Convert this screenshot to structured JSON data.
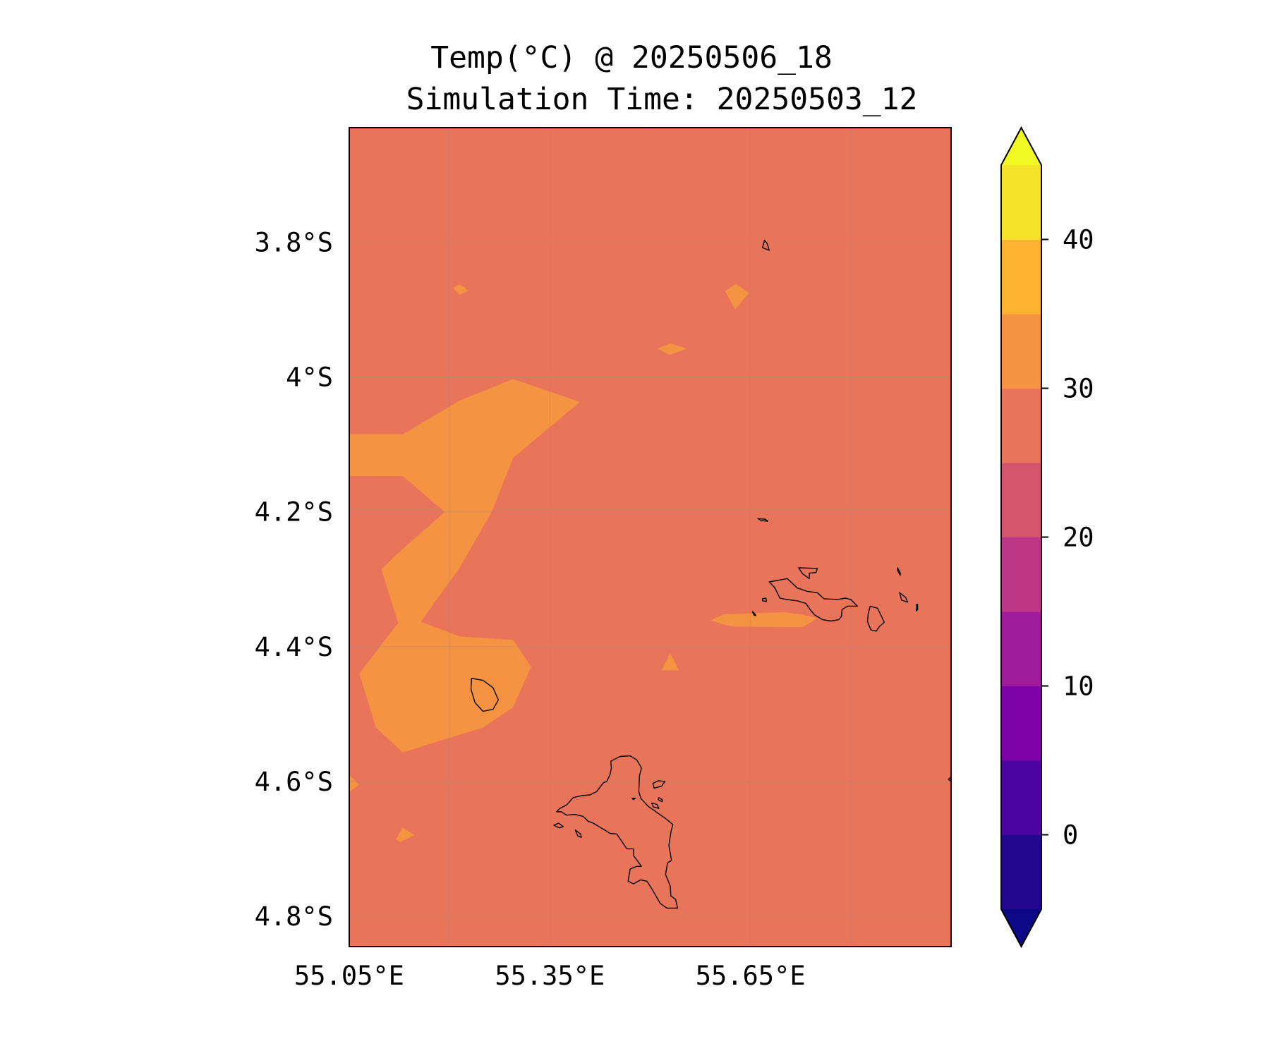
{
  "title": {
    "line1": "Temp(°C) @ 20250506_18",
    "line2": "Simulation Time: 20250503_12"
  },
  "chart_data": {
    "type": "heatmap",
    "variable": "Temp(°C)",
    "projection": "lat-lon",
    "xlim": [
      55.05,
      55.95
    ],
    "ylim": [
      -4.845,
      -3.63
    ],
    "grid": true,
    "x_ticks": [
      {
        "value": 55.05,
        "label": "55.05°E"
      },
      {
        "value": 55.35,
        "label": "55.35°E"
      },
      {
        "value": 55.65,
        "label": "55.65°E"
      }
    ],
    "y_ticks": [
      {
        "value": -3.8,
        "label": "3.8°S"
      },
      {
        "value": -4.0,
        "label": "4°S"
      },
      {
        "value": -4.2,
        "label": "4.2°S"
      },
      {
        "value": -4.4,
        "label": "4.4°S"
      },
      {
        "value": -4.6,
        "label": "4.6°S"
      },
      {
        "value": -4.8,
        "label": "4.8°S"
      }
    ],
    "background_level": {
      "range": [
        25,
        30
      ],
      "color": "#e8745a"
    },
    "highlight_level": {
      "range": [
        30,
        35
      ],
      "color": "#f59342"
    },
    "warm_regions": [
      {
        "name": "western-plume",
        "points": [
          [
            55.05,
            -4.085
          ],
          [
            55.13,
            -4.085
          ],
          [
            55.215,
            -4.035
          ],
          [
            55.295,
            -4.003
          ],
          [
            55.395,
            -4.037
          ],
          [
            55.295,
            -4.12
          ],
          [
            55.263,
            -4.2
          ],
          [
            55.215,
            -4.283
          ],
          [
            55.157,
            -4.363
          ],
          [
            55.215,
            -4.385
          ],
          [
            55.295,
            -4.39
          ],
          [
            55.322,
            -4.43
          ],
          [
            55.295,
            -4.49
          ],
          [
            55.25,
            -4.52
          ],
          [
            55.13,
            -4.557
          ],
          [
            55.09,
            -4.52
          ],
          [
            55.065,
            -4.44
          ],
          [
            55.123,
            -4.365
          ],
          [
            55.098,
            -4.285
          ],
          [
            55.13,
            -4.255
          ],
          [
            55.193,
            -4.2
          ],
          [
            55.13,
            -4.147
          ],
          [
            55.05,
            -4.147
          ]
        ]
      },
      {
        "name": "north-speck",
        "points": [
          [
            55.205,
            -3.868
          ],
          [
            55.215,
            -3.862
          ],
          [
            55.228,
            -3.872
          ],
          [
            55.215,
            -3.878
          ]
        ]
      },
      {
        "name": "north-triangle",
        "points": [
          [
            55.612,
            -3.872
          ],
          [
            55.628,
            -3.862
          ],
          [
            55.648,
            -3.875
          ],
          [
            55.627,
            -3.9
          ]
        ]
      },
      {
        "name": "central-speck",
        "points": [
          [
            55.51,
            -3.958
          ],
          [
            55.53,
            -3.95
          ],
          [
            55.555,
            -3.958
          ],
          [
            55.53,
            -3.967
          ]
        ]
      },
      {
        "name": "east-band",
        "points": [
          [
            55.59,
            -4.361
          ],
          [
            55.61,
            -4.352
          ],
          [
            55.7,
            -4.349
          ],
          [
            55.725,
            -4.352
          ],
          [
            55.75,
            -4.358
          ],
          [
            55.728,
            -4.371
          ],
          [
            55.69,
            -4.371
          ],
          [
            55.62,
            -4.37
          ]
        ]
      },
      {
        "name": "central-triangle",
        "points": [
          [
            55.517,
            -4.435
          ],
          [
            55.53,
            -4.41
          ],
          [
            55.543,
            -4.435
          ]
        ]
      },
      {
        "name": "west-edge-speck",
        "points": [
          [
            55.05,
            -4.59
          ],
          [
            55.065,
            -4.605
          ],
          [
            55.05,
            -4.615
          ]
        ]
      },
      {
        "name": "southwest-speck",
        "points": [
          [
            55.12,
            -4.685
          ],
          [
            55.13,
            -4.668
          ],
          [
            55.148,
            -4.68
          ],
          [
            55.125,
            -4.69
          ]
        ]
      }
    ],
    "coastlines": [
      {
        "name": "mahe",
        "points": [
          [
            55.455,
            -4.563
          ],
          [
            55.47,
            -4.562
          ],
          [
            55.48,
            -4.568
          ],
          [
            55.487,
            -4.58
          ],
          [
            55.484,
            -4.592
          ],
          [
            55.483,
            -4.615
          ],
          [
            55.486,
            -4.625
          ],
          [
            55.497,
            -4.637
          ],
          [
            55.51,
            -4.646
          ],
          [
            55.523,
            -4.655
          ],
          [
            55.534,
            -4.664
          ],
          [
            55.531,
            -4.675
          ],
          [
            55.528,
            -4.695
          ],
          [
            55.532,
            -4.717
          ],
          [
            55.526,
            -4.721
          ],
          [
            55.523,
            -4.738
          ],
          [
            55.53,
            -4.755
          ],
          [
            55.531,
            -4.77
          ],
          [
            55.538,
            -4.775
          ],
          [
            55.541,
            -4.788
          ],
          [
            55.525,
            -4.788
          ],
          [
            55.515,
            -4.781
          ],
          [
            55.503,
            -4.76
          ],
          [
            55.495,
            -4.748
          ],
          [
            55.486,
            -4.746
          ],
          [
            55.475,
            -4.752
          ],
          [
            55.467,
            -4.748
          ],
          [
            55.47,
            -4.73
          ],
          [
            55.48,
            -4.726
          ],
          [
            55.487,
            -4.726
          ],
          [
            55.481,
            -4.718
          ],
          [
            55.475,
            -4.71
          ],
          [
            55.475,
            -4.7
          ],
          [
            55.465,
            -4.7
          ],
          [
            55.457,
            -4.688
          ],
          [
            55.45,
            -4.678
          ],
          [
            55.44,
            -4.677
          ],
          [
            55.43,
            -4.671
          ],
          [
            55.415,
            -4.662
          ],
          [
            55.407,
            -4.659
          ],
          [
            55.4,
            -4.652
          ],
          [
            55.388,
            -4.649
          ],
          [
            55.375,
            -4.65
          ],
          [
            55.367,
            -4.645
          ],
          [
            55.36,
            -4.645
          ],
          [
            55.365,
            -4.64
          ],
          [
            55.375,
            -4.635
          ],
          [
            55.385,
            -4.624
          ],
          [
            55.398,
            -4.621
          ],
          [
            55.41,
            -4.62
          ],
          [
            55.42,
            -4.615
          ],
          [
            55.43,
            -4.602
          ],
          [
            55.435,
            -4.6
          ],
          [
            55.44,
            -4.59
          ],
          [
            55.442,
            -4.58
          ],
          [
            55.441,
            -4.57
          ],
          [
            55.455,
            -4.563
          ]
        ]
      },
      {
        "name": "mahe-west-islet",
        "points": [
          [
            55.356,
            -4.665
          ],
          [
            55.363,
            -4.662
          ],
          [
            55.37,
            -4.667
          ],
          [
            55.364,
            -4.669
          ]
        ]
      },
      {
        "name": "mahe-sw-islet",
        "points": [
          [
            55.388,
            -4.672
          ],
          [
            55.396,
            -4.678
          ],
          [
            55.397,
            -4.683
          ],
          [
            55.392,
            -4.681
          ]
        ]
      },
      {
        "name": "sainte-anne",
        "points": [
          [
            55.504,
            -4.603
          ],
          [
            55.512,
            -4.599
          ],
          [
            55.522,
            -4.6
          ],
          [
            55.517,
            -4.607
          ],
          [
            55.506,
            -4.61
          ]
        ]
      },
      {
        "name": "cerf-small",
        "points": [
          [
            55.502,
            -4.632
          ],
          [
            55.51,
            -4.634
          ],
          [
            55.513,
            -4.64
          ],
          [
            55.505,
            -4.638
          ]
        ]
      },
      {
        "name": "ronde",
        "points": [
          [
            55.513,
            -4.624
          ],
          [
            55.518,
            -4.627
          ],
          [
            55.518,
            -4.63
          ],
          [
            55.512,
            -4.627
          ]
        ]
      },
      {
        "name": "mahe-east-dot",
        "points": [
          [
            55.473,
            -4.625
          ],
          [
            55.478,
            -4.625
          ],
          [
            55.475,
            -4.627
          ]
        ]
      },
      {
        "name": "silhouette",
        "points": [
          [
            55.233,
            -4.447
          ],
          [
            55.25,
            -4.45
          ],
          [
            55.265,
            -4.461
          ],
          [
            55.273,
            -4.479
          ],
          [
            55.265,
            -4.493
          ],
          [
            55.25,
            -4.496
          ],
          [
            55.238,
            -4.483
          ],
          [
            55.232,
            -4.463
          ]
        ]
      },
      {
        "name": "praslin",
        "points": [
          [
            55.678,
            -4.304
          ],
          [
            55.705,
            -4.299
          ],
          [
            55.72,
            -4.313
          ],
          [
            55.735,
            -4.318
          ],
          [
            55.75,
            -4.32
          ],
          [
            55.76,
            -4.329
          ],
          [
            55.78,
            -4.33
          ],
          [
            55.792,
            -4.328
          ],
          [
            55.8,
            -4.33
          ],
          [
            55.81,
            -4.34
          ],
          [
            55.795,
            -4.34
          ],
          [
            55.787,
            -4.345
          ],
          [
            55.786,
            -4.355
          ],
          [
            55.782,
            -4.36
          ],
          [
            55.77,
            -4.362
          ],
          [
            55.758,
            -4.36
          ],
          [
            55.746,
            -4.353
          ],
          [
            55.74,
            -4.346
          ],
          [
            55.733,
            -4.336
          ],
          [
            55.72,
            -4.332
          ],
          [
            55.704,
            -4.33
          ],
          [
            55.694,
            -4.328
          ],
          [
            55.69,
            -4.32
          ],
          [
            55.686,
            -4.312
          ]
        ]
      },
      {
        "name": "curieuse",
        "points": [
          [
            55.722,
            -4.283
          ],
          [
            55.75,
            -4.284
          ],
          [
            55.748,
            -4.29
          ],
          [
            55.738,
            -4.291
          ],
          [
            55.738,
            -4.299
          ],
          [
            55.728,
            -4.292
          ]
        ]
      },
      {
        "name": "la-digue",
        "points": [
          [
            55.829,
            -4.34
          ],
          [
            55.84,
            -4.343
          ],
          [
            55.846,
            -4.355
          ],
          [
            55.85,
            -4.364
          ],
          [
            55.843,
            -4.37
          ],
          [
            55.838,
            -4.377
          ],
          [
            55.83,
            -4.375
          ],
          [
            55.825,
            -4.363
          ],
          [
            55.826,
            -4.351
          ]
        ]
      },
      {
        "name": "felicite",
        "points": [
          [
            55.873,
            -4.32
          ],
          [
            55.882,
            -4.327
          ],
          [
            55.885,
            -4.334
          ],
          [
            55.876,
            -4.331
          ]
        ]
      },
      {
        "name": "marianne",
        "points": [
          [
            55.898,
            -4.338
          ],
          [
            55.9,
            -4.337
          ],
          [
            55.9,
            -4.345
          ],
          [
            55.898,
            -4.347
          ]
        ]
      },
      {
        "name": "aride-north",
        "points": [
          [
            55.668,
            -3.808
          ],
          [
            55.671,
            -3.797
          ],
          [
            55.675,
            -3.802
          ],
          [
            55.678,
            -3.812
          ]
        ]
      },
      {
        "name": "cousin-reef",
        "points": [
          [
            55.661,
            -4.21
          ],
          [
            55.672,
            -4.211
          ],
          [
            55.676,
            -4.214
          ],
          [
            55.666,
            -4.213
          ]
        ]
      },
      {
        "name": "praslin-west-islet-a",
        "points": [
          [
            55.668,
            -4.329
          ],
          [
            55.673,
            -4.328
          ],
          [
            55.674,
            -4.333
          ],
          [
            55.668,
            -4.332
          ]
        ]
      },
      {
        "name": "praslin-west-islet-b",
        "points": [
          [
            55.653,
            -4.348
          ],
          [
            55.657,
            -4.352
          ],
          [
            55.658,
            -4.354
          ],
          [
            55.655,
            -4.353
          ]
        ]
      },
      {
        "name": "marianne-reef",
        "points": [
          [
            55.87,
            -4.283
          ],
          [
            55.874,
            -4.291
          ],
          [
            55.874,
            -4.294
          ],
          [
            55.87,
            -4.287
          ]
        ]
      },
      {
        "name": "east-edge",
        "points": [
          [
            55.95,
            -4.593
          ],
          [
            55.946,
            -4.597
          ],
          [
            55.95,
            -4.6
          ]
        ]
      }
    ],
    "colorbar": {
      "bins": [
        {
          "range": [
            -5,
            0
          ],
          "color": "#23088f"
        },
        {
          "range": [
            0,
            5
          ],
          "color": "#4b04a1"
        },
        {
          "range": [
            5,
            10
          ],
          "color": "#7d03a8"
        },
        {
          "range": [
            10,
            15
          ],
          "color": "#a11c9d"
        },
        {
          "range": [
            15,
            20
          ],
          "color": "#bd3786"
        },
        {
          "range": [
            20,
            25
          ],
          "color": "#d5546e"
        },
        {
          "range": [
            25,
            30
          ],
          "color": "#e8745a"
        },
        {
          "range": [
            30,
            35
          ],
          "color": "#f59342"
        },
        {
          "range": [
            35,
            40
          ],
          "color": "#fdb32f"
        },
        {
          "range": [
            40,
            45
          ],
          "color": "#f5e32a"
        }
      ],
      "under_color": "#0d0887",
      "over_color": "#f0f921",
      "extend": "both",
      "ticks": [
        {
          "value": 0,
          "label": "0"
        },
        {
          "value": 10,
          "label": "10"
        },
        {
          "value": 20,
          "label": "20"
        },
        {
          "value": 30,
          "label": "30"
        },
        {
          "value": 40,
          "label": "40"
        }
      ]
    }
  }
}
